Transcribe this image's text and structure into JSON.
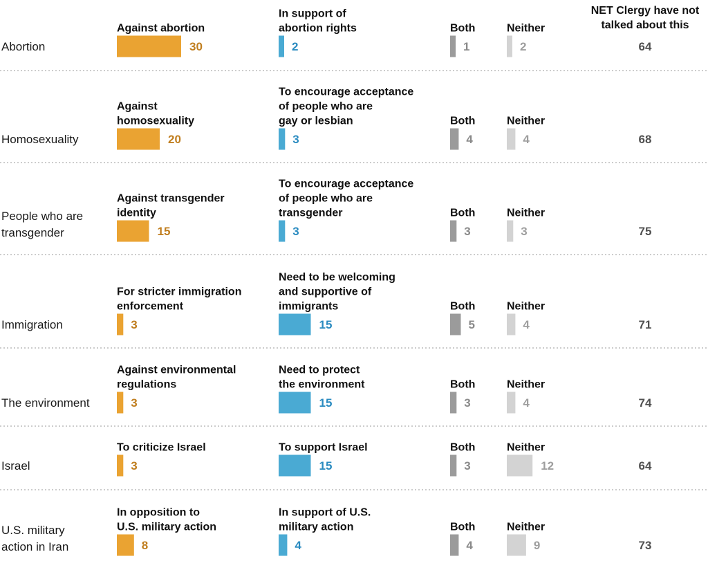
{
  "chart_data": {
    "type": "bar",
    "column_headers": {
      "both": "Both",
      "neither": "Neither",
      "net": [
        "NET Clergy have not",
        "talked about this"
      ]
    },
    "colors": {
      "against": "#eaa332",
      "against_text": "#c07e1f",
      "support": "#4aaad3",
      "support_text": "#2a8bc0",
      "both": "#9b9b9b",
      "both_text": "#8a8a8a",
      "neither": "#d3d3d3",
      "neither_text": "#9e9e9e",
      "net_text": "#505050"
    },
    "rows": [
      {
        "topic": [
          "Abortion"
        ],
        "against_label": [
          "Against abortion"
        ],
        "against": 30,
        "support_label": [
          "In support of",
          "abortion rights"
        ],
        "support": 2,
        "both": 1,
        "neither": 2,
        "net": 64
      },
      {
        "topic": [
          "Homosexuality"
        ],
        "against_label": [
          "Against",
          "homosexuality"
        ],
        "against": 20,
        "support_label": [
          "To encourage acceptance",
          "of people who are",
          "gay or lesbian"
        ],
        "support": 3,
        "both": 4,
        "neither": 4,
        "net": 68
      },
      {
        "topic": [
          "People who are",
          "transgender"
        ],
        "against_label": [
          "Against transgender",
          "identity"
        ],
        "against": 15,
        "support_label": [
          "To encourage acceptance",
          "of people who are",
          "transgender"
        ],
        "support": 3,
        "both": 3,
        "neither": 3,
        "net": 75
      },
      {
        "topic": [
          "Immigration"
        ],
        "against_label": [
          "For stricter immigration",
          "enforcement"
        ],
        "against": 3,
        "support_label": [
          "Need to be welcoming",
          "and supportive of",
          "immigrants"
        ],
        "support": 15,
        "both": 5,
        "neither": 4,
        "net": 71
      },
      {
        "topic": [
          "The environment"
        ],
        "against_label": [
          "Against environmental",
          "regulations"
        ],
        "against": 3,
        "support_label": [
          "Need to protect",
          "the environment"
        ],
        "support": 15,
        "both": 3,
        "neither": 4,
        "net": 74
      },
      {
        "topic": [
          "Israel"
        ],
        "against_label": [
          "To criticize Israel"
        ],
        "against": 3,
        "support_label": [
          "To support Israel"
        ],
        "support": 15,
        "both": 3,
        "neither": 12,
        "net": 64
      },
      {
        "topic": [
          "U.S. military",
          "action in Iran"
        ],
        "against_label": [
          "In opposition to",
          "U.S. military action"
        ],
        "against": 8,
        "support_label": [
          "In support of U.S.",
          "military action"
        ],
        "support": 4,
        "both": 4,
        "neither": 9,
        "net": 73
      }
    ]
  }
}
